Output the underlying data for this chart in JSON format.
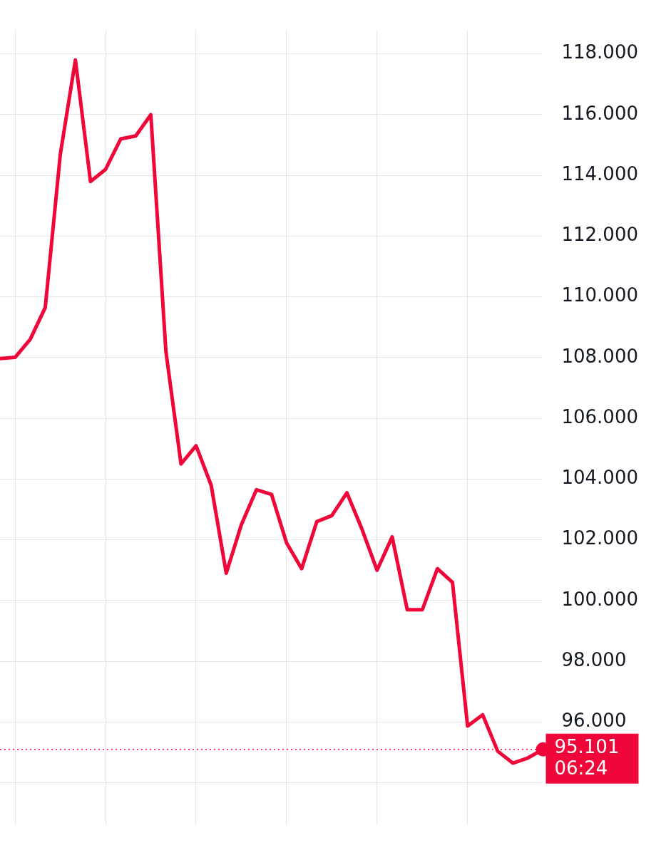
{
  "chart_data": {
    "type": "line",
    "categories": [
      null,
      null,
      null,
      null,
      null,
      null,
      null,
      null,
      null,
      null,
      null,
      null,
      null,
      null,
      null,
      null,
      null,
      null,
      null,
      null,
      null,
      null,
      null,
      null,
      null,
      null,
      null,
      null,
      null,
      null,
      null,
      null,
      null,
      null,
      null,
      null,
      null
    ],
    "series": [
      {
        "color": "#f0073a",
        "values": [
          107.97,
          108.01,
          108.6,
          109.65,
          114.7,
          117.8,
          113.8,
          114.2,
          115.2,
          115.3,
          116.0,
          108.2,
          104.5,
          105.1,
          103.8,
          100.9,
          102.5,
          103.65,
          103.5,
          101.9,
          101.05,
          102.6,
          102.8,
          103.55,
          102.35,
          101.0,
          102.1,
          99.7,
          99.7,
          101.05,
          100.6,
          95.87,
          96.24,
          95.04,
          94.65,
          94.82,
          95.101
        ]
      }
    ],
    "ylim": [
      92.6,
      118.8
    ],
    "yticks": [
      {
        "value": 94,
        "label": null
      },
      {
        "value": 96,
        "label": "96.000"
      },
      {
        "value": 98,
        "label": "98.000"
      },
      {
        "value": 100,
        "label": "100.000"
      },
      {
        "value": 102,
        "label": "102.000"
      },
      {
        "value": 104,
        "label": "104.000"
      },
      {
        "value": 106,
        "label": "106.000"
      },
      {
        "value": 108,
        "label": "108.000"
      },
      {
        "value": 110,
        "label": "110.000"
      },
      {
        "value": 112,
        "label": "112.000"
      },
      {
        "value": 114,
        "label": "114.000"
      },
      {
        "value": 116,
        "label": "116.000"
      },
      {
        "value": 118,
        "label": "118.000"
      }
    ],
    "ref_lines": [
      {
        "axis": "y",
        "value": 95.101,
        "label": "95.101\n06:24",
        "color": "#f0073a",
        "line_style": "dotted"
      }
    ],
    "tick_labels": "y",
    "grid": true,
    "legend": false,
    "marker": "none",
    "line_style": "solid"
  }
}
